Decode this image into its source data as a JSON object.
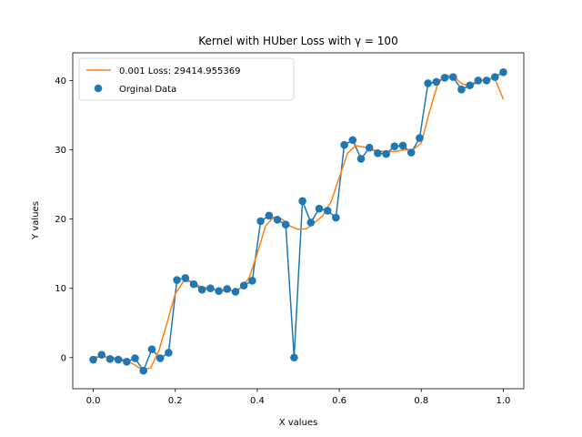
{
  "chart_data": {
    "type": "line",
    "title": "Kernel with HUber Loss with γ = 100",
    "xlabel": "X values",
    "ylabel": "Y values",
    "xlim": [
      -0.05,
      1.05
    ],
    "ylim": [
      -4.5,
      44
    ],
    "xticks": [
      "0.0",
      "0.2",
      "0.4",
      "0.6",
      "0.8",
      "1.0"
    ],
    "yticks": [
      "0",
      "10",
      "20",
      "30",
      "40"
    ],
    "legend": {
      "placement": "top-left"
    },
    "colors": {
      "data": "#1f77b4",
      "fit": "#ff7f0e"
    },
    "series": [
      {
        "name": "Orginal Data",
        "type": "scatter+line",
        "x": [
          0.0,
          0.0204,
          0.0408,
          0.0612,
          0.0816,
          0.102,
          0.1224,
          0.1429,
          0.1633,
          0.1837,
          0.2041,
          0.2245,
          0.2449,
          0.2653,
          0.2857,
          0.3061,
          0.3265,
          0.3469,
          0.3673,
          0.3878,
          0.4082,
          0.4286,
          0.449,
          0.4694,
          0.4898,
          0.5102,
          0.5306,
          0.551,
          0.5714,
          0.5918,
          0.6122,
          0.6327,
          0.6531,
          0.6735,
          0.6939,
          0.7143,
          0.7347,
          0.7551,
          0.7755,
          0.7959,
          0.8163,
          0.8367,
          0.8571,
          0.8776,
          0.898,
          0.9184,
          0.9388,
          0.9592,
          0.9796,
          1.0
        ],
        "y": [
          -0.3,
          0.4,
          -0.2,
          -0.3,
          -0.6,
          -0.1,
          -1.9,
          1.2,
          -0.1,
          0.7,
          11.2,
          11.5,
          10.6,
          9.8,
          10.0,
          9.6,
          9.9,
          9.5,
          10.4,
          11.1,
          19.7,
          20.5,
          19.9,
          19.2,
          0.0,
          22.6,
          19.5,
          21.5,
          21.2,
          20.2,
          30.7,
          31.4,
          28.7,
          30.3,
          29.5,
          29.4,
          30.5,
          30.6,
          29.6,
          31.7,
          39.6,
          39.8,
          40.4,
          40.5,
          38.7,
          39.3,
          40.0,
          40.0,
          40.5,
          41.2
        ]
      },
      {
        "name": "0.001 Loss: 29414.955369",
        "type": "line",
        "x": [
          0.0,
          0.025,
          0.05,
          0.075,
          0.1,
          0.12,
          0.14,
          0.16,
          0.18,
          0.2,
          0.22,
          0.24,
          0.26,
          0.28,
          0.3,
          0.32,
          0.34,
          0.36,
          0.38,
          0.4,
          0.42,
          0.44,
          0.46,
          0.48,
          0.5,
          0.52,
          0.54,
          0.56,
          0.58,
          0.6,
          0.62,
          0.64,
          0.66,
          0.68,
          0.7,
          0.72,
          0.74,
          0.76,
          0.78,
          0.8,
          0.82,
          0.84,
          0.86,
          0.88,
          0.9,
          0.92,
          0.94,
          0.96,
          0.98,
          1.0
        ],
        "y": [
          0.1,
          0.1,
          0.0,
          -0.3,
          -1.0,
          -1.8,
          -1.5,
          1.0,
          5.0,
          9.2,
          11.0,
          11.0,
          10.3,
          10.0,
          9.8,
          9.6,
          9.7,
          10.0,
          11.5,
          15.0,
          19.0,
          20.3,
          20.0,
          19.0,
          18.5,
          18.6,
          19.5,
          20.5,
          22.5,
          26.0,
          29.5,
          30.6,
          30.4,
          30.0,
          29.8,
          29.7,
          29.8,
          30.0,
          30.0,
          31.0,
          35.5,
          39.5,
          40.8,
          40.5,
          39.5,
          39.2,
          39.8,
          40.3,
          40.2,
          37.3
        ]
      }
    ]
  }
}
